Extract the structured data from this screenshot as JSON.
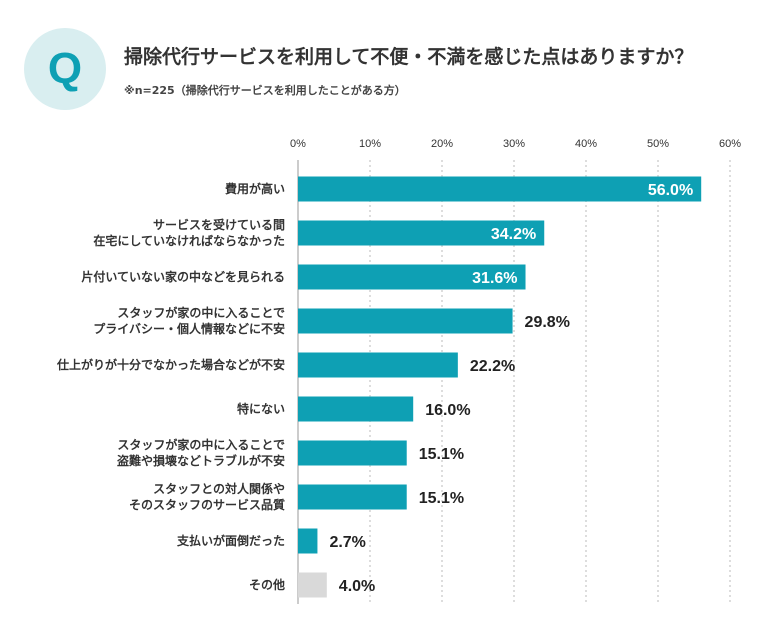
{
  "header": {
    "badge_letter": "Q",
    "title": "掃除代行サービスを利用して不便・不満を感じた点はありますか？",
    "subtitle": "※n=225（掃除代行サービスを利用したことがある方）"
  },
  "colors": {
    "accent": "#0ea0b4",
    "badge_bg": "#d9eef0",
    "other_bar": "#d9d9d9",
    "grid": "#bbbbbb"
  },
  "chart_data": {
    "type": "bar",
    "orientation": "horizontal",
    "xlim": [
      0,
      60
    ],
    "ticks": [
      0,
      10,
      20,
      30,
      40,
      50,
      60
    ],
    "tick_labels": [
      "0%",
      "10%",
      "20%",
      "30%",
      "40%",
      "50%",
      "60%"
    ],
    "grid": true,
    "categories": [
      [
        "費用が高い"
      ],
      [
        "サービスを受けている間",
        "在宅にしていなければならなかった"
      ],
      [
        "片付いていない家の中などを見られる"
      ],
      [
        "スタッフが家の中に入ることで",
        "プライバシー・個人情報などに不安"
      ],
      [
        "仕上がりが十分でなかった場合などが不安"
      ],
      [
        "特にない"
      ],
      [
        "スタッフが家の中に入ることで",
        "盗難や損壊などトラブルが不安"
      ],
      [
        "スタッフとの対人関係や",
        "そのスタッフのサービス品質"
      ],
      [
        "支払いが面倒だった"
      ],
      [
        "その他"
      ]
    ],
    "values": [
      56.0,
      34.2,
      31.6,
      29.8,
      22.2,
      16.0,
      15.1,
      15.1,
      2.7,
      4.0
    ],
    "value_labels": [
      "56.0%",
      "34.2%",
      "31.6%",
      "29.8%",
      "22.2%",
      "16.0%",
      "15.1%",
      "15.1%",
      "2.7%",
      "4.0%"
    ],
    "highlight_other_index": 9
  }
}
